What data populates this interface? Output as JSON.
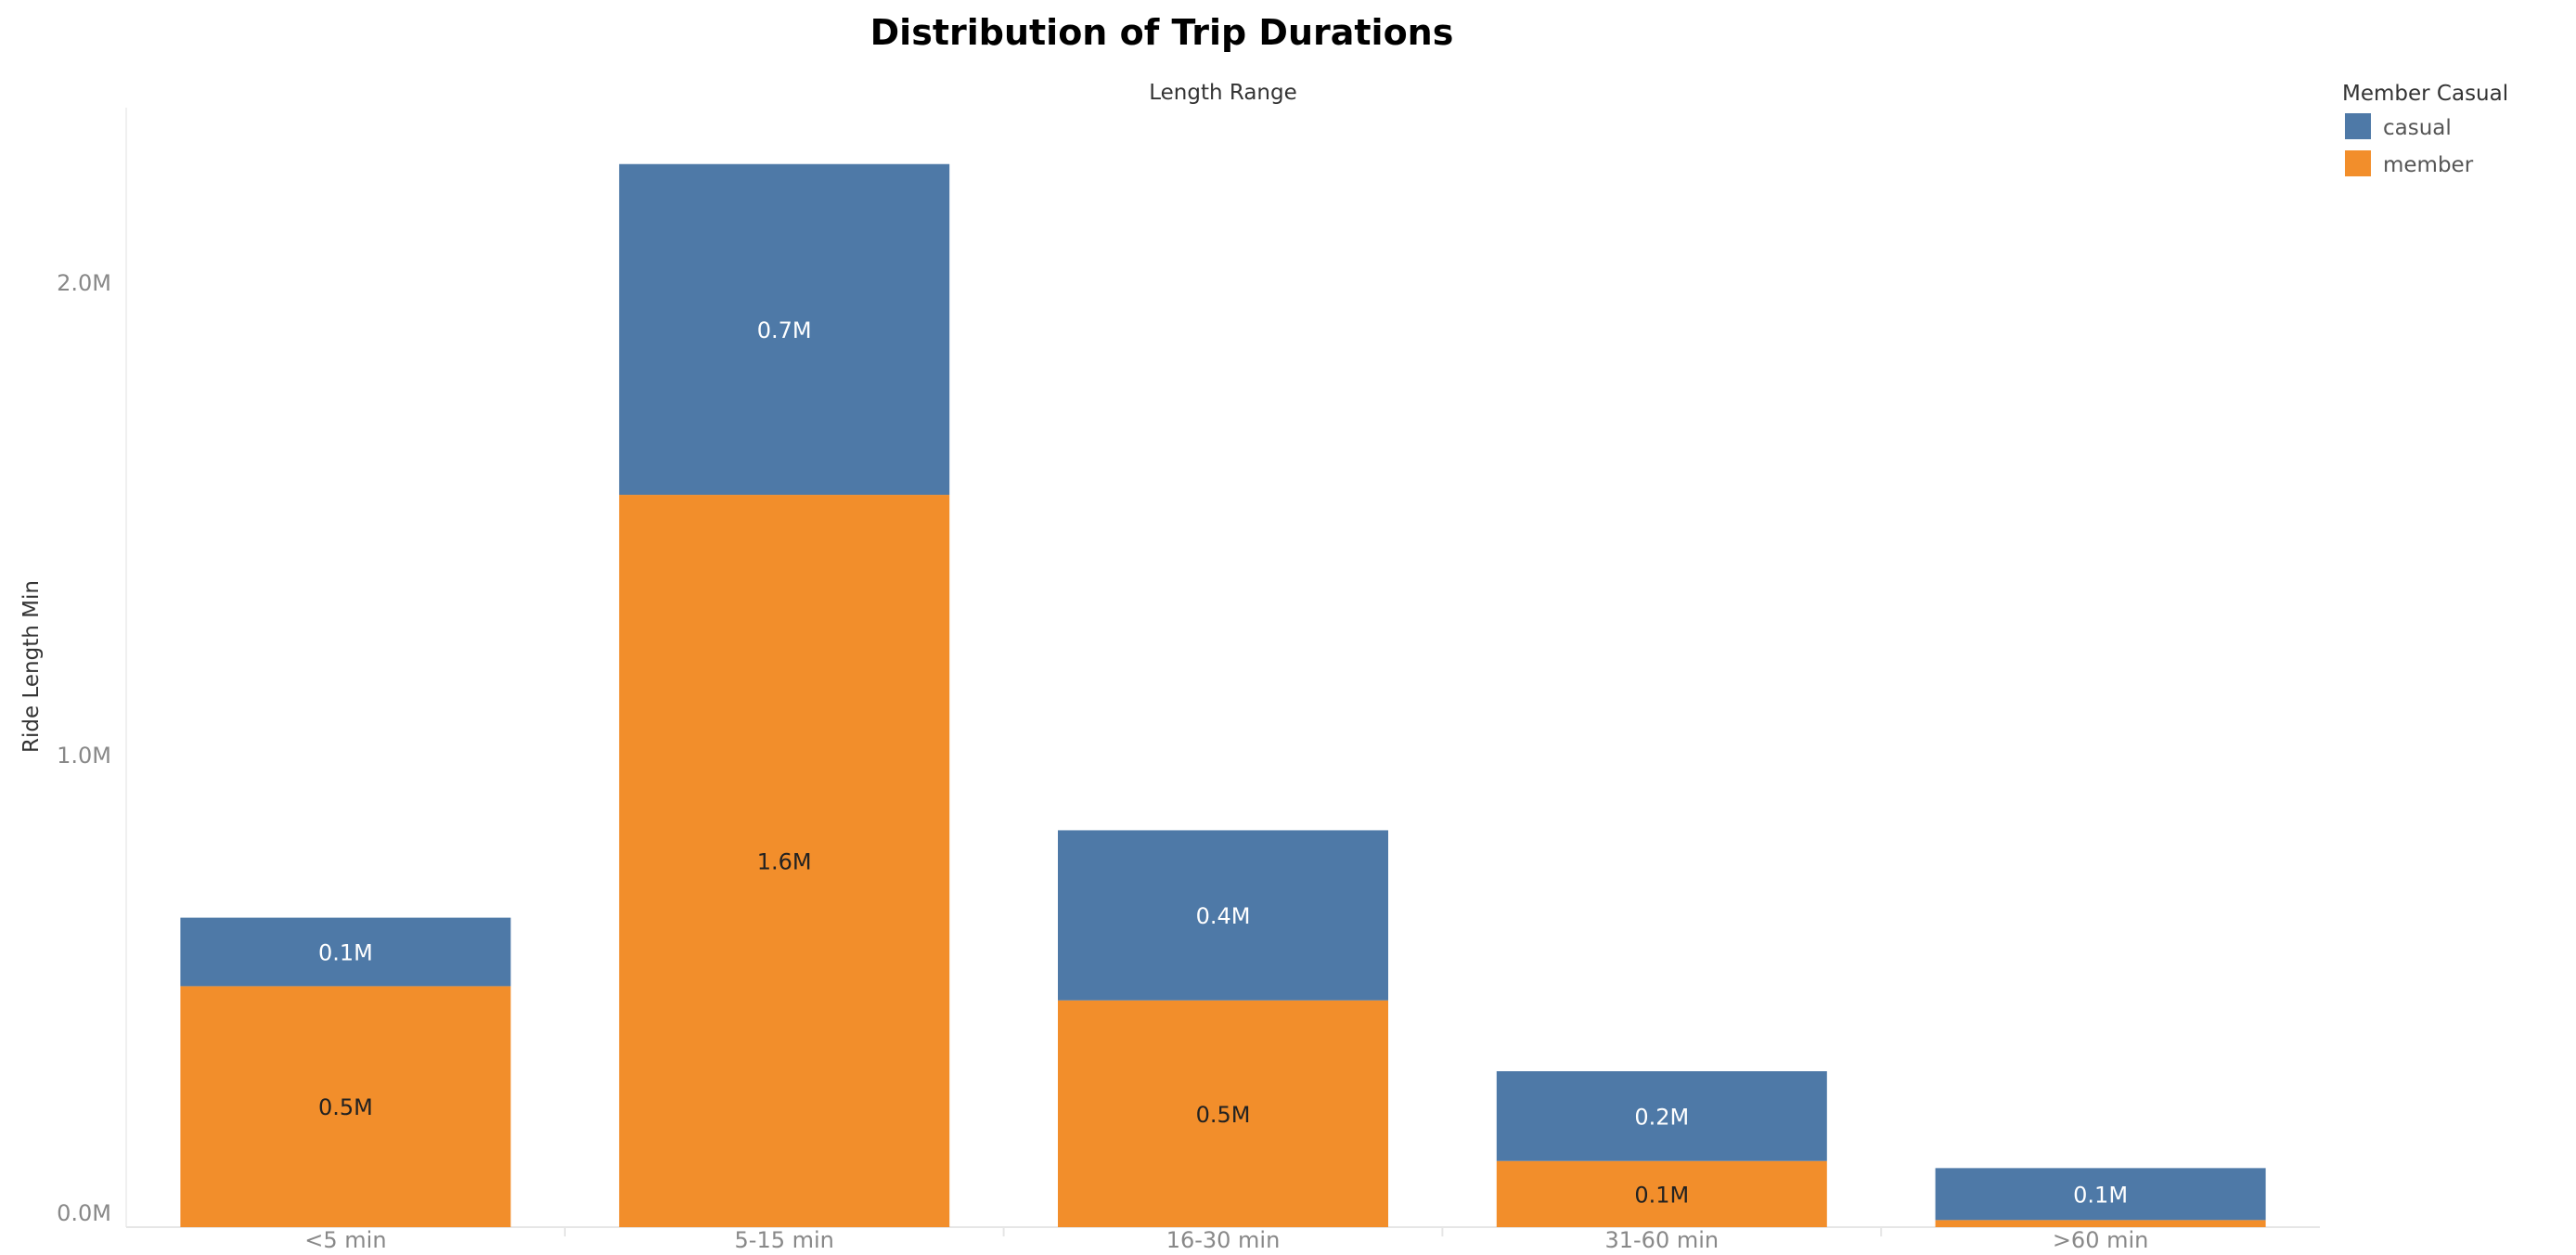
{
  "chart_data": {
    "type": "bar",
    "stacked": true,
    "title": "Distribution of Trip Durations",
    "xlabel": "Length Range",
    "ylabel": "Ride Length Min",
    "categories": [
      "<5 min",
      "5-15 min",
      "16-30 min",
      "31-60 min",
      ">60 min"
    ],
    "series": [
      {
        "name": "member",
        "color": "#f28e2b",
        "values": [
          510000,
          1550000,
          480000,
          140000,
          15000
        ],
        "labels": [
          "0.5M",
          "1.6M",
          "0.5M",
          "0.1M",
          ""
        ]
      },
      {
        "name": "casual",
        "color": "#4e79a7",
        "values": [
          145000,
          700000,
          360000,
          190000,
          110000
        ],
        "labels": [
          "0.1M",
          "0.7M",
          "0.4M",
          "0.2M",
          "0.1M"
        ]
      }
    ],
    "ylim": [
      0,
      2300000
    ],
    "yticks": [
      {
        "value": 0,
        "label": "0.0M"
      },
      {
        "value": 1000000,
        "label": "1.0M"
      },
      {
        "value": 2000000,
        "label": "2.0M"
      }
    ],
    "legend": {
      "title": "Member Casual",
      "position": "top-right",
      "order": [
        "casual",
        "member"
      ]
    },
    "grid": false
  }
}
